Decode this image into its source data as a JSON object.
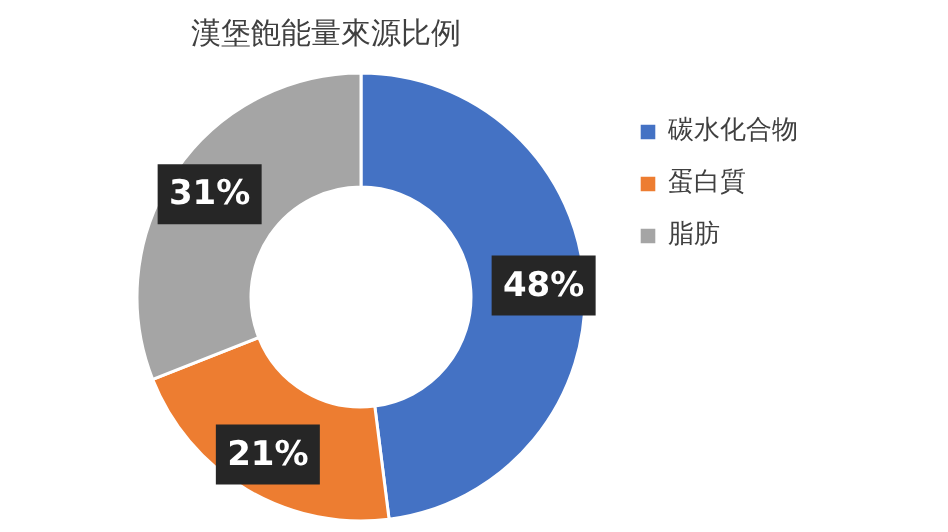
{
  "chart_data": {
    "type": "donut",
    "title": "漢堡飽能量來源比例",
    "categories": [
      "碳水化合物",
      "蛋白質",
      "脂肪"
    ],
    "values": [
      48,
      21,
      31
    ],
    "colors": [
      "#4472c4",
      "#ed7d31",
      "#a5a5a5"
    ],
    "value_labels": [
      "48%",
      "21%",
      "31%"
    ],
    "legend": "right"
  }
}
